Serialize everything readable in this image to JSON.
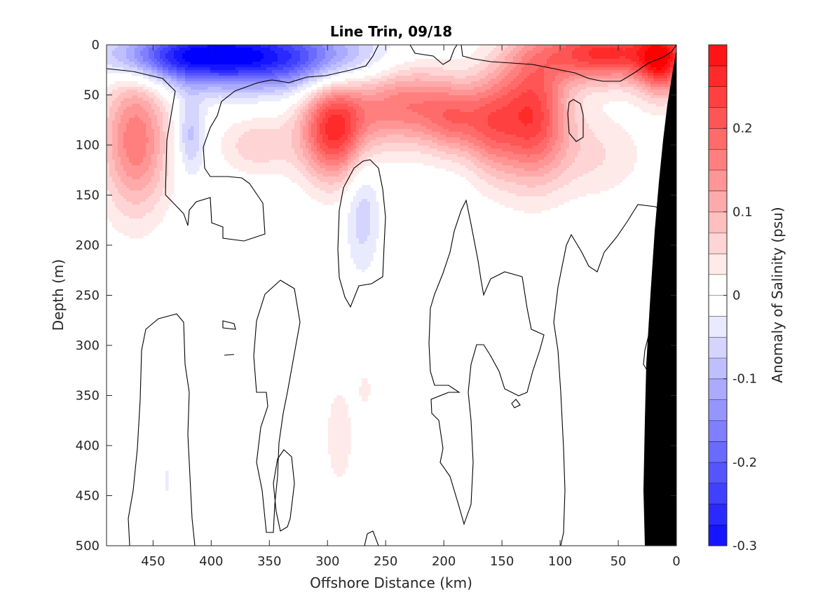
{
  "chart_data": {
    "type": "heatmap",
    "title": "Line Trin, 09/18",
    "xlabel": "Offshore Distance (km)",
    "ylabel": "Depth (m)",
    "colorbar_label": "Anomaly of Salinity (psu)",
    "xlim": [
      490,
      0
    ],
    "ylim": [
      0,
      500
    ],
    "x_reversed": true,
    "y_reversed": true,
    "x_ticks": [
      "450",
      "400",
      "350",
      "300",
      "250",
      "200",
      "150",
      "100",
      "50",
      "0"
    ],
    "y_ticks": [
      "0",
      "50",
      "100",
      "150",
      "200",
      "250",
      "300",
      "350",
      "400",
      "450",
      "500"
    ],
    "colorbar_range": [
      -0.3,
      0.3
    ],
    "colorbar_ticks": [
      "-0.3",
      "-0.2",
      "-0.1",
      "0",
      "0.1",
      "0.2"
    ],
    "colormap": "blue-white-red",
    "colors": {
      "negative": "#0000ff",
      "zero": "#ffffff",
      "positive": "#ff0000",
      "seafloor": "#000000"
    },
    "features": [
      {
        "sign": "negative",
        "x": 385,
        "y": 10,
        "sx": 50,
        "sy": 22,
        "value": -0.26
      },
      {
        "sign": "negative",
        "x": 440,
        "y": 12,
        "sx": 40,
        "sy": 16,
        "value": -0.12
      },
      {
        "sign": "negative",
        "x": 310,
        "y": 15,
        "sx": 45,
        "sy": 22,
        "value": -0.12
      },
      {
        "sign": "negative",
        "x": 418,
        "y": 90,
        "sx": 9,
        "sy": 28,
        "value": -0.09
      },
      {
        "sign": "negative",
        "x": 270,
        "y": 165,
        "sx": 10,
        "sy": 42,
        "value": -0.07
      },
      {
        "sign": "negative",
        "x": 438,
        "y": 435,
        "sx": 3,
        "sy": 18,
        "value": -0.03
      },
      {
        "sign": "positive",
        "x": 62,
        "y": 8,
        "sx": 38,
        "sy": 20,
        "value": 0.26
      },
      {
        "sign": "positive",
        "x": 12,
        "y": 15,
        "sx": 15,
        "sy": 25,
        "value": 0.23
      },
      {
        "sign": "positive",
        "x": 125,
        "y": 70,
        "sx": 22,
        "sy": 45,
        "value": 0.24
      },
      {
        "sign": "positive",
        "x": 160,
        "y": 80,
        "sx": 15,
        "sy": 35,
        "value": 0.12
      },
      {
        "sign": "positive",
        "x": 295,
        "y": 85,
        "sx": 20,
        "sy": 35,
        "value": 0.25
      },
      {
        "sign": "positive",
        "x": 235,
        "y": 60,
        "sx": 32,
        "sy": 28,
        "value": 0.17
      },
      {
        "sign": "positive",
        "x": 190,
        "y": 75,
        "sx": 18,
        "sy": 25,
        "value": 0.13
      },
      {
        "sign": "positive",
        "x": 465,
        "y": 95,
        "sx": 20,
        "sy": 50,
        "value": 0.17
      },
      {
        "sign": "positive",
        "x": 360,
        "y": 100,
        "sx": 22,
        "sy": 20,
        "value": 0.07
      },
      {
        "sign": "positive",
        "x": 70,
        "y": 110,
        "sx": 30,
        "sy": 30,
        "value": 0.05
      },
      {
        "sign": "positive",
        "x": 290,
        "y": 390,
        "sx": 8,
        "sy": 35,
        "value": 0.05
      },
      {
        "sign": "positive",
        "x": 268,
        "y": 345,
        "sx": 4,
        "sy": 12,
        "value": 0.04
      }
    ]
  }
}
